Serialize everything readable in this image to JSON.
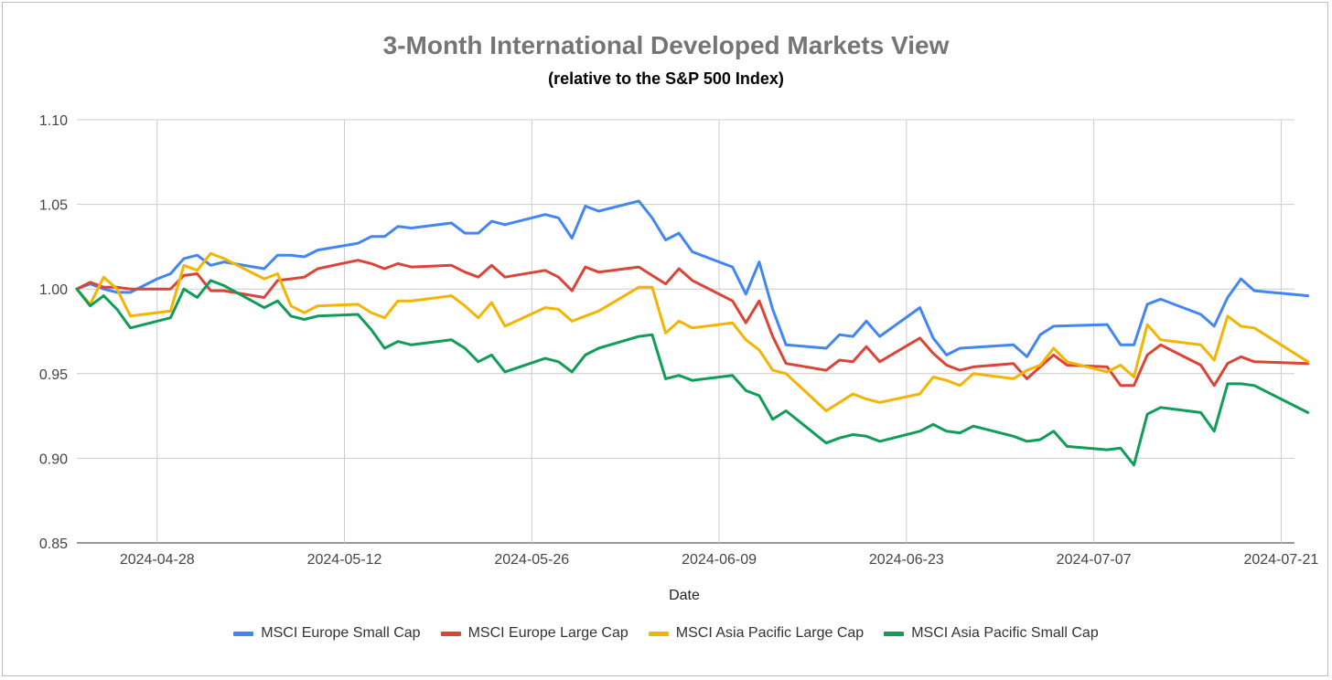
{
  "chart_data": {
    "type": "line",
    "title": "3-Month International Developed Markets View",
    "subtitle": "(relative to the S&P 500 Index)",
    "xlabel": "Date",
    "ylabel": "",
    "ylim": [
      0.85,
      1.1
    ],
    "yticks": [
      "0.85",
      "0.90",
      "0.95",
      "1.00",
      "1.05",
      "1.10"
    ],
    "xticks": [
      "2024-04-28",
      "2024-05-12",
      "2024-05-26",
      "2024-06-09",
      "2024-06-23",
      "2024-07-07",
      "2024-07-21"
    ],
    "grid": true,
    "legend_position": "bottom",
    "x_start": "2024-04-22",
    "x_end": "2024-07-22",
    "series": [
      {
        "name": "MSCI Europe Small Cap",
        "color": "#4285F4",
        "points": [
          [
            0,
            1.0
          ],
          [
            1,
            1.003
          ],
          [
            2,
            1.0
          ],
          [
            3,
            0.998
          ],
          [
            4,
            0.998
          ],
          [
            6,
            1.006
          ],
          [
            7,
            1.009
          ],
          [
            8,
            1.018
          ],
          [
            9,
            1.02
          ],
          [
            10,
            1.014
          ],
          [
            11,
            1.016
          ],
          [
            14,
            1.012
          ],
          [
            15,
            1.02
          ],
          [
            16,
            1.02
          ],
          [
            17,
            1.019
          ],
          [
            18,
            1.023
          ],
          [
            21,
            1.027
          ],
          [
            22,
            1.031
          ],
          [
            23,
            1.031
          ],
          [
            24,
            1.037
          ],
          [
            25,
            1.036
          ],
          [
            28,
            1.039
          ],
          [
            29,
            1.033
          ],
          [
            30,
            1.033
          ],
          [
            31,
            1.04
          ],
          [
            32,
            1.038
          ],
          [
            35,
            1.044
          ],
          [
            36,
            1.042
          ],
          [
            37,
            1.03
          ],
          [
            38,
            1.049
          ],
          [
            39,
            1.046
          ],
          [
            42,
            1.052
          ],
          [
            43,
            1.042
          ],
          [
            44,
            1.029
          ],
          [
            45,
            1.033
          ],
          [
            46,
            1.022
          ],
          [
            49,
            1.013
          ],
          [
            50,
            0.997
          ],
          [
            51,
            1.016
          ],
          [
            52,
            0.988
          ],
          [
            53,
            0.967
          ],
          [
            56,
            0.965
          ],
          [
            57,
            0.973
          ],
          [
            58,
            0.972
          ],
          [
            59,
            0.981
          ],
          [
            60,
            0.972
          ],
          [
            63,
            0.989
          ],
          [
            64,
            0.971
          ],
          [
            65,
            0.961
          ],
          [
            66,
            0.965
          ],
          [
            70,
            0.967
          ],
          [
            71,
            0.96
          ],
          [
            72,
            0.973
          ],
          [
            73,
            0.978
          ],
          [
            77,
            0.979
          ],
          [
            78,
            0.967
          ],
          [
            79,
            0.967
          ],
          [
            80,
            0.991
          ],
          [
            81,
            0.994
          ],
          [
            84,
            0.985
          ],
          [
            85,
            0.978
          ],
          [
            86,
            0.995
          ],
          [
            87,
            1.006
          ],
          [
            88,
            0.999
          ],
          [
            92,
            0.996
          ]
        ]
      },
      {
        "name": "MSCI Europe Large Cap",
        "color": "#DB4437",
        "points": [
          [
            0,
            1.0
          ],
          [
            1,
            1.004
          ],
          [
            2,
            1.001
          ],
          [
            3,
            1.001
          ],
          [
            4,
            1.0
          ],
          [
            7,
            1.0
          ],
          [
            8,
            1.008
          ],
          [
            9,
            1.009
          ],
          [
            10,
            0.999
          ],
          [
            11,
            0.999
          ],
          [
            14,
            0.995
          ],
          [
            15,
            1.005
          ],
          [
            16,
            1.006
          ],
          [
            17,
            1.007
          ],
          [
            18,
            1.012
          ],
          [
            21,
            1.017
          ],
          [
            22,
            1.015
          ],
          [
            23,
            1.012
          ],
          [
            24,
            1.015
          ],
          [
            25,
            1.013
          ],
          [
            28,
            1.014
          ],
          [
            29,
            1.01
          ],
          [
            30,
            1.007
          ],
          [
            31,
            1.014
          ],
          [
            32,
            1.007
          ],
          [
            35,
            1.011
          ],
          [
            36,
            1.007
          ],
          [
            37,
            0.999
          ],
          [
            38,
            1.013
          ],
          [
            39,
            1.01
          ],
          [
            42,
            1.013
          ],
          [
            43,
            1.008
          ],
          [
            44,
            1.003
          ],
          [
            45,
            1.012
          ],
          [
            46,
            1.005
          ],
          [
            49,
            0.993
          ],
          [
            50,
            0.98
          ],
          [
            51,
            0.993
          ],
          [
            52,
            0.972
          ],
          [
            53,
            0.956
          ],
          [
            56,
            0.952
          ],
          [
            57,
            0.958
          ],
          [
            58,
            0.957
          ],
          [
            59,
            0.966
          ],
          [
            60,
            0.957
          ],
          [
            63,
            0.971
          ],
          [
            64,
            0.962
          ],
          [
            65,
            0.955
          ],
          [
            66,
            0.952
          ],
          [
            67,
            0.954
          ],
          [
            70,
            0.956
          ],
          [
            71,
            0.947
          ],
          [
            72,
            0.954
          ],
          [
            73,
            0.961
          ],
          [
            74,
            0.955
          ],
          [
            77,
            0.954
          ],
          [
            78,
            0.943
          ],
          [
            79,
            0.943
          ],
          [
            80,
            0.961
          ],
          [
            81,
            0.967
          ],
          [
            84,
            0.955
          ],
          [
            85,
            0.943
          ],
          [
            86,
            0.956
          ],
          [
            87,
            0.96
          ],
          [
            88,
            0.957
          ],
          [
            92,
            0.956
          ]
        ]
      },
      {
        "name": "MSCI Asia Pacific Large Cap",
        "color": "#F4B400",
        "points": [
          [
            0,
            1.0
          ],
          [
            1,
            0.991
          ],
          [
            2,
            1.007
          ],
          [
            3,
            1.0
          ],
          [
            4,
            0.984
          ],
          [
            7,
            0.987
          ],
          [
            8,
            1.014
          ],
          [
            9,
            1.011
          ],
          [
            10,
            1.021
          ],
          [
            11,
            1.018
          ],
          [
            14,
            1.006
          ],
          [
            15,
            1.009
          ],
          [
            16,
            0.99
          ],
          [
            17,
            0.986
          ],
          [
            18,
            0.99
          ],
          [
            21,
            0.991
          ],
          [
            22,
            0.986
          ],
          [
            23,
            0.983
          ],
          [
            24,
            0.993
          ],
          [
            25,
            0.993
          ],
          [
            28,
            0.996
          ],
          [
            29,
            0.99
          ],
          [
            30,
            0.983
          ],
          [
            31,
            0.992
          ],
          [
            32,
            0.978
          ],
          [
            35,
            0.989
          ],
          [
            36,
            0.988
          ],
          [
            37,
            0.981
          ],
          [
            38,
            0.984
          ],
          [
            39,
            0.987
          ],
          [
            42,
            1.001
          ],
          [
            43,
            1.001
          ],
          [
            44,
            0.974
          ],
          [
            45,
            0.981
          ],
          [
            46,
            0.977
          ],
          [
            49,
            0.98
          ],
          [
            50,
            0.97
          ],
          [
            51,
            0.964
          ],
          [
            52,
            0.952
          ],
          [
            53,
            0.95
          ],
          [
            56,
            0.928
          ],
          [
            57,
            0.933
          ],
          [
            58,
            0.938
          ],
          [
            59,
            0.935
          ],
          [
            60,
            0.933
          ],
          [
            63,
            0.938
          ],
          [
            64,
            0.948
          ],
          [
            65,
            0.946
          ],
          [
            66,
            0.943
          ],
          [
            67,
            0.95
          ],
          [
            70,
            0.947
          ],
          [
            71,
            0.952
          ],
          [
            72,
            0.955
          ],
          [
            73,
            0.965
          ],
          [
            74,
            0.957
          ],
          [
            77,
            0.951
          ],
          [
            78,
            0.955
          ],
          [
            79,
            0.948
          ],
          [
            80,
            0.979
          ],
          [
            81,
            0.97
          ],
          [
            84,
            0.967
          ],
          [
            85,
            0.958
          ],
          [
            86,
            0.984
          ],
          [
            87,
            0.978
          ],
          [
            88,
            0.977
          ],
          [
            92,
            0.957
          ]
        ]
      },
      {
        "name": "MSCI Asia Pacific Small Cap",
        "color": "#0F9D58",
        "points": [
          [
            0,
            1.0
          ],
          [
            1,
            0.99
          ],
          [
            2,
            0.996
          ],
          [
            3,
            0.988
          ],
          [
            4,
            0.977
          ],
          [
            7,
            0.983
          ],
          [
            8,
            1.0
          ],
          [
            9,
            0.995
          ],
          [
            10,
            1.005
          ],
          [
            11,
            1.002
          ],
          [
            14,
            0.989
          ],
          [
            15,
            0.993
          ],
          [
            16,
            0.984
          ],
          [
            17,
            0.982
          ],
          [
            18,
            0.984
          ],
          [
            21,
            0.985
          ],
          [
            22,
            0.976
          ],
          [
            23,
            0.965
          ],
          [
            24,
            0.969
          ],
          [
            25,
            0.967
          ],
          [
            28,
            0.97
          ],
          [
            29,
            0.965
          ],
          [
            30,
            0.957
          ],
          [
            31,
            0.961
          ],
          [
            32,
            0.951
          ],
          [
            35,
            0.959
          ],
          [
            36,
            0.957
          ],
          [
            37,
            0.951
          ],
          [
            38,
            0.961
          ],
          [
            39,
            0.965
          ],
          [
            42,
            0.972
          ],
          [
            43,
            0.973
          ],
          [
            44,
            0.947
          ],
          [
            45,
            0.949
          ],
          [
            46,
            0.946
          ],
          [
            49,
            0.949
          ],
          [
            50,
            0.94
          ],
          [
            51,
            0.937
          ],
          [
            52,
            0.923
          ],
          [
            53,
            0.928
          ],
          [
            56,
            0.909
          ],
          [
            57,
            0.912
          ],
          [
            58,
            0.914
          ],
          [
            59,
            0.913
          ],
          [
            60,
            0.91
          ],
          [
            63,
            0.916
          ],
          [
            64,
            0.92
          ],
          [
            65,
            0.916
          ],
          [
            66,
            0.915
          ],
          [
            67,
            0.919
          ],
          [
            70,
            0.913
          ],
          [
            71,
            0.91
          ],
          [
            72,
            0.911
          ],
          [
            73,
            0.916
          ],
          [
            74,
            0.907
          ],
          [
            77,
            0.905
          ],
          [
            78,
            0.906
          ],
          [
            79,
            0.896
          ],
          [
            80,
            0.926
          ],
          [
            81,
            0.93
          ],
          [
            84,
            0.927
          ],
          [
            85,
            0.916
          ],
          [
            86,
            0.944
          ],
          [
            87,
            0.944
          ],
          [
            88,
            0.943
          ],
          [
            92,
            0.927
          ]
        ]
      }
    ]
  }
}
